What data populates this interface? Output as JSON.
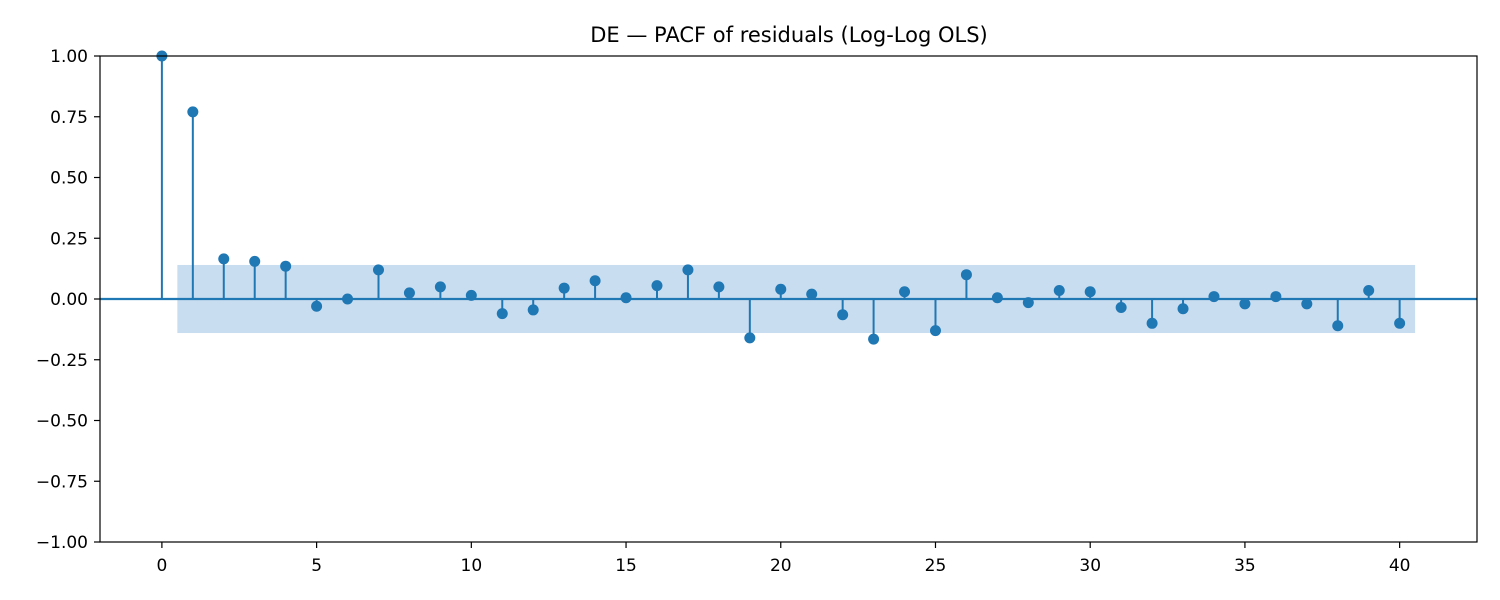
{
  "chart_data": {
    "type": "stem",
    "title": "DE — PACF of residuals (Log-Log OLS)",
    "xlabel": "",
    "ylabel": "",
    "xlim": [
      -2,
      42.5
    ],
    "ylim": [
      -1.0,
      1.0
    ],
    "x_ticks": [
      0,
      5,
      10,
      15,
      20,
      25,
      30,
      35,
      40
    ],
    "x_tick_labels": [
      "0",
      "5",
      "10",
      "15",
      "20",
      "25",
      "30",
      "35",
      "40"
    ],
    "y_ticks": [
      1.0,
      0.75,
      0.5,
      0.25,
      0.0,
      -0.25,
      -0.5,
      -0.75,
      -1.0
    ],
    "y_tick_labels": [
      "1.00",
      "0.75",
      "0.50",
      "0.25",
      "0.00",
      "−0.25",
      "−0.50",
      "−0.75",
      "−1.00"
    ],
    "grid": false,
    "confidence_band": {
      "x_range": [
        0.5,
        40.5
      ],
      "lower": -0.14,
      "upper": 0.14
    },
    "lags": [
      0,
      1,
      2,
      3,
      4,
      5,
      6,
      7,
      8,
      9,
      10,
      11,
      12,
      13,
      14,
      15,
      16,
      17,
      18,
      19,
      20,
      21,
      22,
      23,
      24,
      25,
      26,
      27,
      28,
      29,
      30,
      31,
      32,
      33,
      34,
      35,
      36,
      37,
      38,
      39,
      40
    ],
    "values": [
      1.0,
      0.77,
      0.165,
      0.155,
      0.135,
      -0.03,
      0.0,
      0.12,
      0.025,
      0.05,
      0.015,
      -0.06,
      -0.045,
      0.045,
      0.075,
      0.005,
      0.055,
      0.12,
      0.05,
      -0.16,
      0.04,
      0.02,
      -0.065,
      -0.165,
      0.03,
      -0.13,
      0.1,
      0.005,
      -0.015,
      0.035,
      0.03,
      -0.035,
      -0.1,
      -0.04,
      0.01,
      -0.02,
      0.01,
      -0.02,
      -0.11,
      0.035,
      -0.1
    ],
    "colors": {
      "stem": "#1f77b4",
      "band": "#c6dbef",
      "axis": "#000000",
      "zero_line": "#1f77b4"
    }
  }
}
